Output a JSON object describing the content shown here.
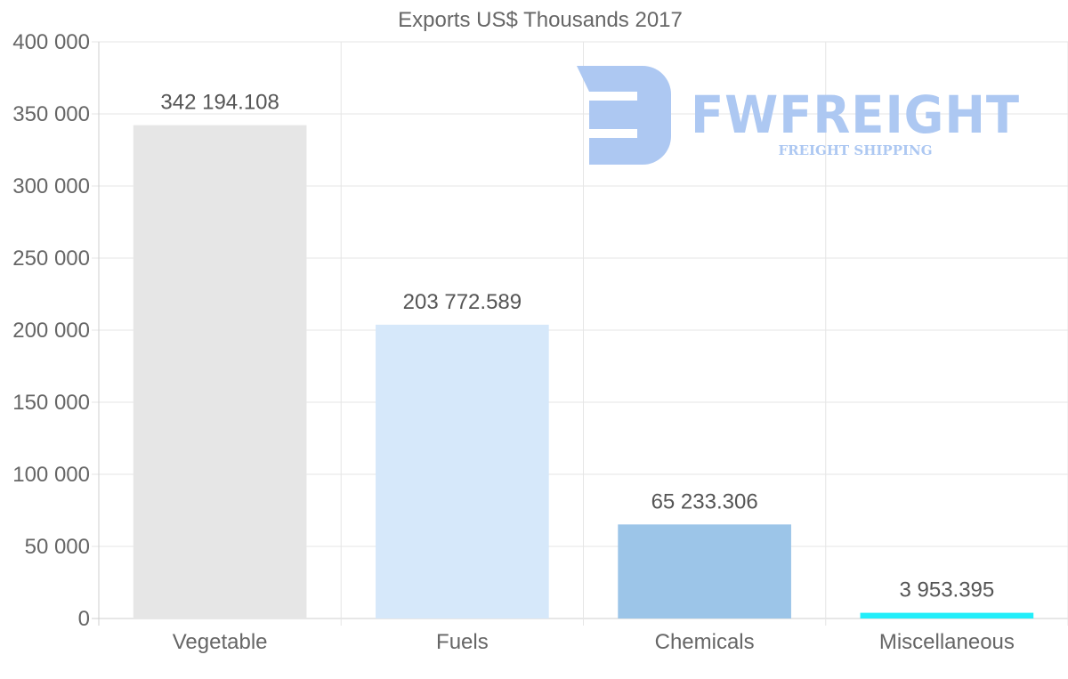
{
  "chart_data": {
    "type": "bar",
    "title": "Exports US$ Thousands 2017",
    "categories": [
      "Vegetable",
      "Fuels",
      "Chemicals",
      "Miscellaneous"
    ],
    "values": [
      342194.108,
      203772.589,
      65233.306,
      3953.395
    ],
    "data_labels": [
      "342 194.108",
      "203 772.589",
      "65 233.306",
      "3 953.395"
    ],
    "colors": [
      "#e6e6e6",
      "#d6e8fa",
      "#9cc5e8",
      "#22eefa"
    ],
    "ylim": [
      0,
      400000
    ],
    "yticks": [
      0,
      50000,
      100000,
      150000,
      200000,
      250000,
      300000,
      350000,
      400000
    ],
    "ytick_labels": [
      "0",
      "50 000",
      "100 000",
      "150 000",
      "200 000",
      "250 000",
      "300 000",
      "350 000",
      "400 000"
    ],
    "xlabel": "",
    "ylabel": "",
    "grid": true
  },
  "watermark": {
    "brand": "FWFREIGHT",
    "tagline": "FREIGHT SHIPPING",
    "color": "#adc8f2"
  }
}
